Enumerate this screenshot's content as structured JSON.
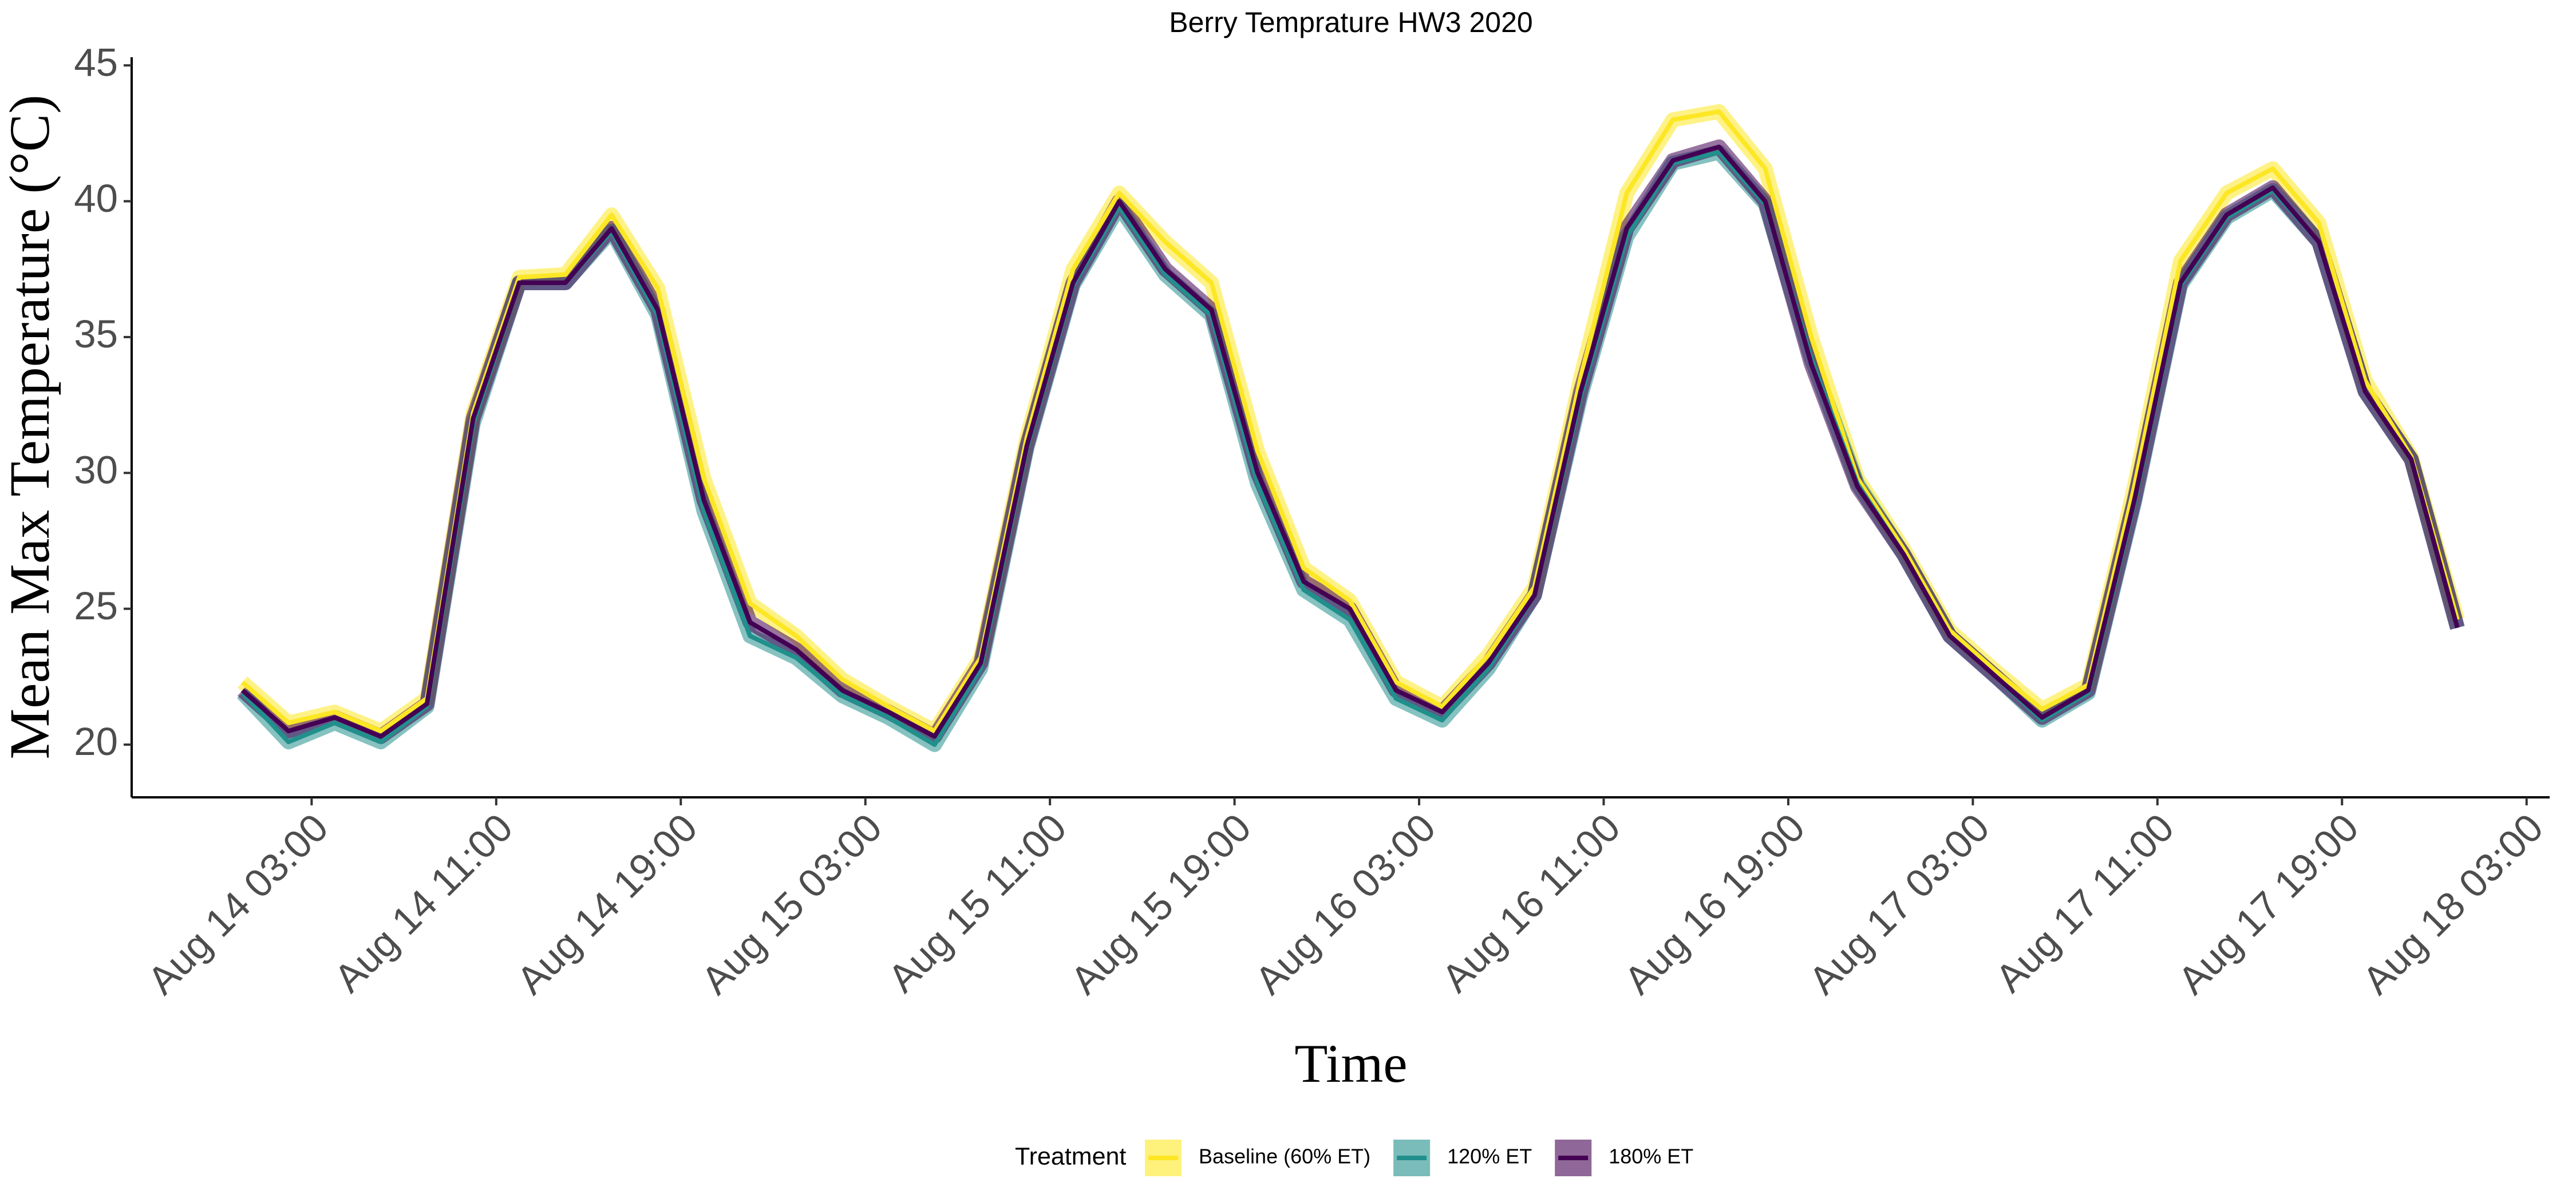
{
  "chart_data": {
    "type": "line",
    "title": "Berry Temprature  HW3 2020",
    "x_label": "Time",
    "y_label": "Mean Max Temperature (°C)",
    "legend_title": "Treatment",
    "legend_position": "bottom",
    "x": [
      "Aug 14 00:00",
      "Aug 14 02:00",
      "Aug 14 04:00",
      "Aug 14 06:00",
      "Aug 14 08:00",
      "Aug 14 10:00",
      "Aug 14 12:00",
      "Aug 14 14:00",
      "Aug 14 16:00",
      "Aug 14 18:00",
      "Aug 14 20:00",
      "Aug 14 22:00",
      "Aug 15 00:00",
      "Aug 15 02:00",
      "Aug 15 04:00",
      "Aug 15 06:00",
      "Aug 15 08:00",
      "Aug 15 10:00",
      "Aug 15 12:00",
      "Aug 15 14:00",
      "Aug 15 16:00",
      "Aug 15 18:00",
      "Aug 15 20:00",
      "Aug 15 22:00",
      "Aug 16 00:00",
      "Aug 16 02:00",
      "Aug 16 04:00",
      "Aug 16 06:00",
      "Aug 16 08:00",
      "Aug 16 10:00",
      "Aug 16 12:00",
      "Aug 16 14:00",
      "Aug 16 16:00",
      "Aug 16 18:00",
      "Aug 16 20:00",
      "Aug 16 22:00",
      "Aug 17 00:00",
      "Aug 17 02:00",
      "Aug 17 04:00",
      "Aug 17 06:00",
      "Aug 17 08:00",
      "Aug 17 10:00",
      "Aug 17 12:00",
      "Aug 17 14:00",
      "Aug 17 16:00",
      "Aug 17 18:00",
      "Aug 17 20:00",
      "Aug 17 22:00",
      "Aug 18 00:00"
    ],
    "series": [
      {
        "name": "Baseline (60% ET)",
        "color": "#FDE725",
        "values": [
          22.3,
          20.8,
          21.2,
          20.5,
          21.7,
          32.2,
          37.2,
          37.3,
          39.5,
          36.8,
          29.8,
          25.2,
          24.0,
          22.4,
          21.4,
          20.5,
          23.2,
          31.3,
          37.5,
          40.3,
          38.5,
          37.0,
          30.8,
          26.5,
          25.3,
          22.3,
          21.4,
          23.3,
          25.8,
          33.5,
          40.3,
          43.0,
          43.3,
          41.2,
          35.0,
          29.8,
          27.2,
          24.2,
          22.7,
          21.3,
          22.2,
          29.5,
          37.8,
          40.3,
          41.2,
          39.2,
          33.4,
          30.6,
          24.6
        ]
      },
      {
        "name": "120% ET",
        "color": "#21908C",
        "values": [
          21.9,
          20.1,
          20.8,
          20.1,
          21.4,
          31.8,
          37.0,
          37.0,
          38.9,
          35.8,
          28.6,
          24.0,
          23.2,
          21.8,
          21.0,
          20.0,
          22.8,
          30.9,
          36.9,
          39.8,
          37.3,
          35.8,
          29.6,
          25.7,
          24.6,
          21.7,
          20.9,
          22.8,
          25.5,
          32.8,
          38.7,
          41.4,
          41.8,
          39.9,
          34.2,
          29.6,
          27.0,
          24.0,
          22.5,
          20.9,
          21.9,
          28.9,
          36.9,
          39.4,
          40.4,
          38.5,
          33.0,
          30.5,
          24.3
        ]
      },
      {
        "name": "180% ET",
        "color": "#440154",
        "values": [
          22.0,
          20.5,
          21.0,
          20.3,
          21.5,
          32.0,
          37.0,
          37.0,
          39.0,
          36.0,
          29.0,
          24.5,
          23.5,
          22.0,
          21.2,
          20.3,
          23.0,
          31.0,
          37.0,
          40.0,
          37.5,
          36.0,
          30.0,
          26.0,
          25.0,
          22.0,
          21.2,
          23.0,
          25.5,
          33.0,
          39.0,
          41.5,
          42.0,
          40.0,
          34.0,
          29.5,
          27.0,
          24.0,
          22.5,
          21.0,
          22.0,
          29.0,
          37.0,
          39.5,
          40.5,
          38.5,
          33.0,
          30.5,
          24.3
        ]
      }
    ],
    "xlim": [
      "Aug 13 19:12",
      "Aug 18 04:00"
    ],
    "xticks": [
      "Aug 14 03:00",
      "Aug 14 11:00",
      "Aug 14 19:00",
      "Aug 15 03:00",
      "Aug 15 11:00",
      "Aug 15 19:00",
      "Aug 16 03:00",
      "Aug 16 11:00",
      "Aug 16 19:00",
      "Aug 17 03:00",
      "Aug 17 11:00",
      "Aug 17 19:00",
      "Aug 18 03:00"
    ],
    "ylim": [
      18.06,
      45.3
    ],
    "yticks": [
      20,
      25,
      30,
      35,
      40,
      45
    ],
    "grid": false
  }
}
